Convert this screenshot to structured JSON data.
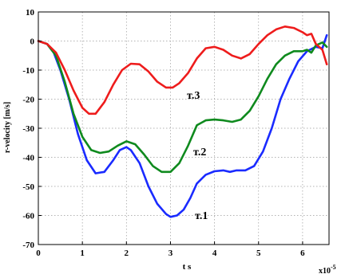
{
  "chart_data": {
    "type": "line",
    "xlabel": "t s",
    "ylabel": "r-velocity [m/s]",
    "x_multiplier_label": "x10",
    "x_multiplier_exp": "-5",
    "xlim": [
      0,
      6.6
    ],
    "ylim": [
      -70,
      10
    ],
    "x_ticks": [
      0,
      1,
      2,
      3,
      4,
      5,
      6
    ],
    "x_tick_labels": [
      "0",
      "1",
      "2",
      "3",
      "4",
      "5",
      "6"
    ],
    "y_ticks": [
      10,
      0,
      -10,
      -20,
      -30,
      -40,
      -50,
      -60,
      -70
    ],
    "y_tick_labels": [
      "10",
      "0",
      "-10",
      "-20",
      "-30",
      "-40",
      "-50",
      "-60",
      "-70"
    ],
    "grid": true,
    "series": [
      {
        "name": "т.1",
        "color": "#1a2bff",
        "x": [
          0,
          0.2,
          0.35,
          0.5,
          0.7,
          0.9,
          1.1,
          1.3,
          1.5,
          1.7,
          1.85,
          2.0,
          2.1,
          2.3,
          2.5,
          2.7,
          2.9,
          3.0,
          3.15,
          3.3,
          3.45,
          3.6,
          3.8,
          4.0,
          4.2,
          4.35,
          4.5,
          4.7,
          4.9,
          5.1,
          5.3,
          5.5,
          5.7,
          5.9,
          6.1,
          6.3,
          6.45,
          6.55
        ],
        "y": [
          0,
          -1,
          -4,
          -10,
          -20,
          -32,
          -41,
          -45.5,
          -45,
          -41,
          -37.5,
          -36.5,
          -37.5,
          -42,
          -50,
          -56,
          -59.5,
          -60.5,
          -60,
          -58,
          -54,
          -49,
          -46,
          -44.8,
          -44.5,
          -45,
          -44.5,
          -44.5,
          -43,
          -38,
          -30,
          -20,
          -13,
          -7,
          -3.5,
          -2,
          -2.5,
          2
        ]
      },
      {
        "name": "т.2",
        "color": "#0f8a1e",
        "x": [
          0,
          0.2,
          0.4,
          0.6,
          0.8,
          1.0,
          1.2,
          1.4,
          1.6,
          1.8,
          2.0,
          2.2,
          2.4,
          2.6,
          2.8,
          3.0,
          3.2,
          3.4,
          3.6,
          3.8,
          4.0,
          4.2,
          4.4,
          4.6,
          4.8,
          5.0,
          5.2,
          5.4,
          5.6,
          5.8,
          6.0,
          6.1,
          6.2,
          6.3,
          6.45,
          6.55
        ],
        "y": [
          0,
          -1,
          -5,
          -14,
          -25,
          -33,
          -37.5,
          -38.5,
          -38,
          -36,
          -34.5,
          -35.5,
          -39,
          -43,
          -45,
          -45,
          -42,
          -36,
          -29,
          -27.3,
          -27,
          -27.3,
          -27.8,
          -27,
          -24,
          -19,
          -13,
          -8,
          -5,
          -3.5,
          -3.5,
          -3,
          -4,
          -1.5,
          -0.5,
          -2
        ]
      },
      {
        "name": "т.3",
        "color": "#ee1c1c",
        "x": [
          0,
          0.2,
          0.4,
          0.6,
          0.8,
          1.0,
          1.15,
          1.3,
          1.5,
          1.7,
          1.9,
          2.1,
          2.3,
          2.5,
          2.7,
          2.9,
          3.05,
          3.2,
          3.4,
          3.6,
          3.8,
          4.0,
          4.2,
          4.4,
          4.6,
          4.8,
          5.0,
          5.2,
          5.4,
          5.6,
          5.8,
          6.0,
          6.1,
          6.2,
          6.3,
          6.45,
          6.55
        ],
        "y": [
          0,
          -1,
          -4,
          -10,
          -17,
          -23,
          -25,
          -25,
          -21,
          -15,
          -10,
          -7.8,
          -8,
          -10.5,
          -14,
          -16,
          -16,
          -14.5,
          -11,
          -6,
          -2.5,
          -2,
          -3,
          -5,
          -6,
          -4.5,
          -1,
          2,
          4,
          5,
          4.5,
          3,
          2,
          2.5,
          -1,
          -3,
          -8
        ]
      }
    ]
  }
}
